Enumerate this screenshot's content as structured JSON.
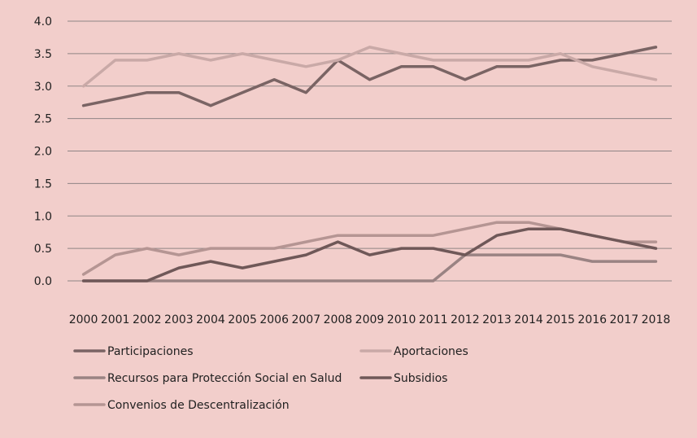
{
  "chart_data": {
    "type": "line",
    "title": "",
    "xlabel": "",
    "ylabel": "",
    "ylim": [
      0,
      4
    ],
    "yticks": [
      "0.0",
      "0.5",
      "1.0",
      "1.5",
      "2.0",
      "2.5",
      "3.0",
      "3.5",
      "4.0"
    ],
    "grid": "horizontal",
    "legend_position": "bottom",
    "categories": [
      "2000",
      "2001",
      "2002",
      "2003",
      "2004",
      "2005",
      "2006",
      "2007",
      "2008",
      "2009",
      "2010",
      "2011",
      "2012",
      "2013",
      "2014",
      "2015",
      "2016",
      "2017",
      "2018"
    ],
    "series": [
      {
        "name": "Participaciones",
        "color": "#7a6464",
        "values": [
          2.7,
          2.8,
          2.9,
          2.9,
          2.7,
          2.9,
          3.1,
          2.9,
          3.4,
          3.1,
          3.3,
          3.3,
          3.1,
          3.3,
          3.3,
          3.4,
          3.4,
          3.5,
          3.6
        ]
      },
      {
        "name": "Aportaciones",
        "color": "#c9a9a7",
        "values": [
          3.0,
          3.4,
          3.4,
          3.5,
          3.4,
          3.5,
          3.4,
          3.3,
          3.4,
          3.6,
          3.5,
          3.4,
          3.4,
          3.4,
          3.4,
          3.5,
          3.3,
          3.2,
          3.1
        ]
      },
      {
        "name": "Recursos para Protección Social en Salud",
        "color": "#9a8383",
        "values": [
          0.0,
          0.0,
          0.0,
          0.0,
          0.0,
          0.0,
          0.0,
          0.0,
          0.0,
          0.0,
          0.0,
          0.0,
          0.4,
          0.4,
          0.4,
          0.4,
          0.3,
          0.3,
          0.3
        ]
      },
      {
        "name": "Subsidios",
        "color": "#6f5858",
        "values": [
          0.0,
          0.0,
          0.0,
          0.2,
          0.3,
          0.2,
          0.3,
          0.4,
          0.6,
          0.4,
          0.5,
          0.5,
          0.4,
          0.7,
          0.8,
          0.8,
          0.7,
          0.6,
          0.5
        ]
      },
      {
        "name": "Convenios de Descentralización",
        "color": "#b59593",
        "values": [
          0.1,
          0.4,
          0.5,
          0.4,
          0.5,
          0.5,
          0.5,
          0.6,
          0.7,
          0.7,
          0.7,
          0.7,
          0.8,
          0.9,
          0.9,
          0.8,
          0.7,
          0.6,
          0.6
        ]
      }
    ]
  }
}
